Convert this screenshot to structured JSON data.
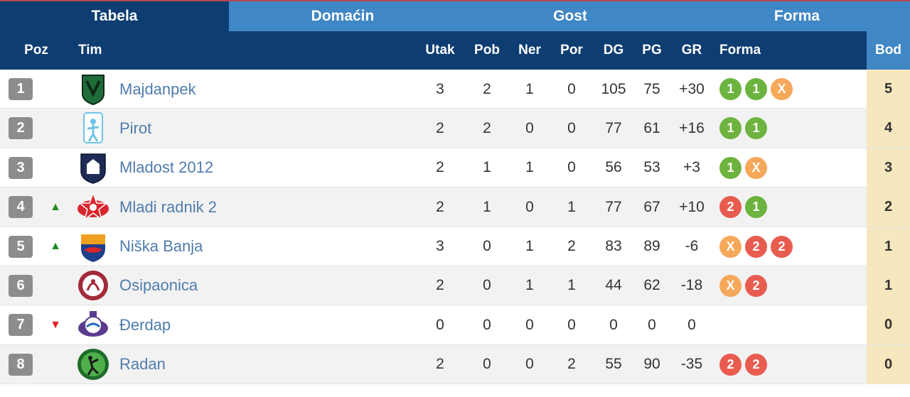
{
  "colors": {
    "header_dark": "#0e3d72",
    "header_light": "#3f87c5",
    "team_link": "#4f7cad",
    "form_win": "#6db33f",
    "form_draw": "#f5a85a",
    "form_loss": "#e85c50",
    "points_bg": "#f6e7bf",
    "trend_up": "#1f8c1f",
    "trend_down": "#e01e1e"
  },
  "tabs": [
    "Tabela",
    "Domaćin",
    "Gost",
    "Forma"
  ],
  "columns": {
    "poz": "Poz",
    "tim": "Tim",
    "utak": "Utak",
    "pob": "Pob",
    "ner": "Ner",
    "por": "Por",
    "dg": "DG",
    "pg": "PG",
    "gr": "GR",
    "forma": "Forma",
    "bod": "Bod"
  },
  "rows": [
    {
      "pos": "1",
      "trend": "",
      "team": "Majdanpek",
      "logo": "majdanpek-logo",
      "utak": "3",
      "pob": "2",
      "ner": "1",
      "por": "0",
      "dg": "105",
      "pg": "75",
      "gr": "+30",
      "form": [
        "1",
        "1",
        "X"
      ],
      "bod": "5"
    },
    {
      "pos": "2",
      "trend": "",
      "team": "Pirot",
      "logo": "pirot-logo",
      "utak": "2",
      "pob": "2",
      "ner": "0",
      "por": "0",
      "dg": "77",
      "pg": "61",
      "gr": "+16",
      "form": [
        "1",
        "1"
      ],
      "bod": "4"
    },
    {
      "pos": "3",
      "trend": "",
      "team": "Mladost 2012",
      "logo": "mladost-2012-logo",
      "utak": "2",
      "pob": "1",
      "ner": "1",
      "por": "0",
      "dg": "56",
      "pg": "53",
      "gr": "+3",
      "form": [
        "1",
        "X"
      ],
      "bod": "3"
    },
    {
      "pos": "4",
      "trend": "up",
      "team": "Mladi radnik 2",
      "logo": "mladi-radnik-logo",
      "utak": "2",
      "pob": "1",
      "ner": "0",
      "por": "1",
      "dg": "77",
      "pg": "67",
      "gr": "+10",
      "form": [
        "2",
        "1"
      ],
      "bod": "2"
    },
    {
      "pos": "5",
      "trend": "up",
      "team": "Niška Banja",
      "logo": "niska-banja-logo",
      "utak": "3",
      "pob": "0",
      "ner": "1",
      "por": "2",
      "dg": "83",
      "pg": "89",
      "gr": "-6",
      "form": [
        "X",
        "2",
        "2"
      ],
      "bod": "1"
    },
    {
      "pos": "6",
      "trend": "",
      "team": "Osipaonica",
      "logo": "osipaonica-logo",
      "utak": "2",
      "pob": "0",
      "ner": "1",
      "por": "1",
      "dg": "44",
      "pg": "62",
      "gr": "-18",
      "form": [
        "X",
        "2"
      ],
      "bod": "1"
    },
    {
      "pos": "7",
      "trend": "down",
      "team": "Đerdap",
      "logo": "derdap-logo",
      "utak": "0",
      "pob": "0",
      "ner": "0",
      "por": "0",
      "dg": "0",
      "pg": "0",
      "gr": "0",
      "form": [],
      "bod": "0"
    },
    {
      "pos": "8",
      "trend": "",
      "team": "Radan",
      "logo": "radan-logo",
      "utak": "2",
      "pob": "0",
      "ner": "0",
      "por": "2",
      "dg": "55",
      "pg": "90",
      "gr": "-35",
      "form": [
        "2",
        "2"
      ],
      "bod": "0"
    }
  ]
}
